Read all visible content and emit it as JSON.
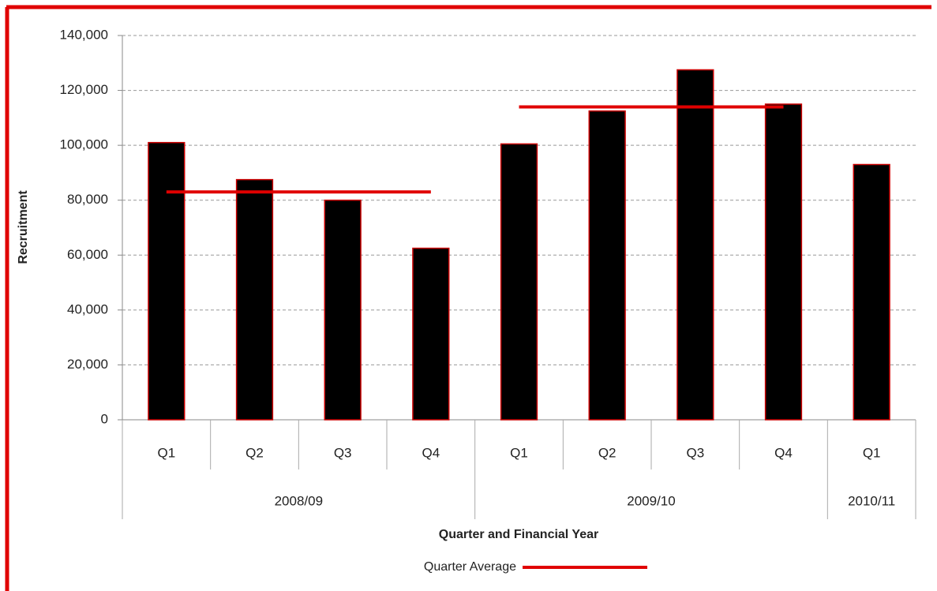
{
  "chart_data": {
    "type": "bar",
    "y_label": "Recruitment",
    "x_label": "Quarter and Financial Year",
    "categories": [
      "Q1",
      "Q2",
      "Q3",
      "Q4",
      "Q1",
      "Q2",
      "Q3",
      "Q4",
      "Q1"
    ],
    "years": [
      "2008/09",
      "2008/09",
      "2008/09",
      "2008/09",
      "2009/10",
      "2009/10",
      "2009/10",
      "2009/10",
      "2010/11"
    ],
    "values": [
      101000,
      87500,
      80000,
      62500,
      100500,
      112500,
      127500,
      115000,
      93000
    ],
    "color": "#000000",
    "edge_color": "#cc0000",
    "series": [
      {
        "name": "Quarter Average",
        "color": "#e00000",
        "type": "line",
        "values": [
          83000,
          83000,
          83000,
          83000,
          114000,
          114000,
          114000,
          114000,
          null
        ]
      }
    ],
    "ylim": [
      0,
      140000
    ],
    "yticks": [
      0,
      {
        "value": 20000,
        "label": "20,000"
      },
      {
        "value": 40000,
        "label": "40,000"
      },
      {
        "value": 60000,
        "label": "60,000"
      },
      {
        "value": 80000,
        "label": "80,000"
      },
      {
        "value": 100000,
        "label": "100,000"
      },
      {
        "value": 120000,
        "label": "120,000"
      },
      {
        "value": 140000,
        "label": "140,000"
      }
    ],
    "grid": true,
    "legend": "bottom"
  }
}
